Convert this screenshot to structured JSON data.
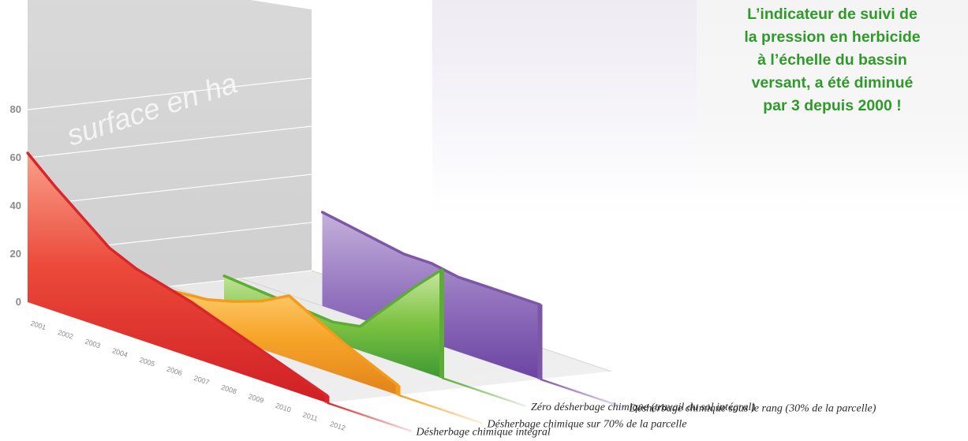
{
  "chart_data": {
    "type": "area",
    "view": "3d",
    "ylabel": "surface en ha",
    "ylim": [
      0,
      80
    ],
    "yticks": [
      "0",
      "20",
      "40",
      "60",
      "80"
    ],
    "categories": [
      "2001",
      "2002",
      "2003",
      "2004",
      "2005",
      "2006",
      "2007",
      "2008",
      "2009",
      "2010",
      "2011",
      "2012"
    ],
    "series": [
      {
        "name": "Désherbage chimique intégral",
        "color": "#d8262b",
        "values": [
          62,
          52,
          43,
          34,
          29,
          26,
          23,
          19,
          15,
          11,
          7,
          3
        ]
      },
      {
        "name": "Désherbage chimique sur 70% de la parcelle",
        "color": "#f29c1c",
        "values": [
          null,
          10,
          11,
          12,
          13,
          16,
          20,
          26,
          20,
          14,
          9,
          4
        ]
      },
      {
        "name": "Zéro désherbage chimique (travail du sol intégral)",
        "color": "#5cac35",
        "values": [
          null,
          null,
          12,
          11,
          10,
          9,
          8,
          10,
          22,
          34,
          45,
          null
        ]
      },
      {
        "name": "Désherbage chimique sous le rang (30% de la parcelle)",
        "color": "#7d56a8",
        "values": [
          null,
          null,
          null,
          39,
          37,
          35,
          33,
          33,
          31,
          31,
          31,
          31
        ]
      }
    ]
  },
  "note": {
    "lines": [
      "L’indicateur de suivi de",
      "la pression en herbicide",
      "à l’échelle du bassin",
      "versant, a été diminué",
      "par 3 depuis 2000 !"
    ]
  }
}
